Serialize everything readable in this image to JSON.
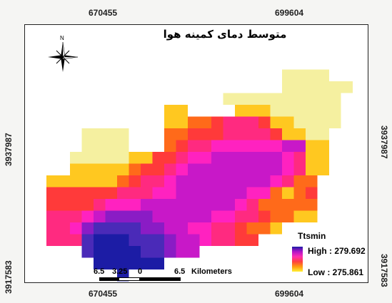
{
  "map": {
    "title": "متوسط دمای کمینه هوا",
    "north_label": "N",
    "x_ticks": [
      "670455",
      "699604"
    ],
    "y_ticks": [
      "3937987",
      "3917583"
    ],
    "legend": {
      "title": "Ttsmin",
      "high_label": "High : 279.692",
      "low_label": "Low : 275.861",
      "colors": [
        "#1c1ca5",
        "#b215c8",
        "#ff2eb0",
        "#ff4040",
        "#ff9a10",
        "#fff035"
      ]
    },
    "scale": {
      "labels": [
        "6.5",
        "3.25",
        "0",
        "6.5"
      ],
      "unit": "Kilometers"
    }
  }
}
